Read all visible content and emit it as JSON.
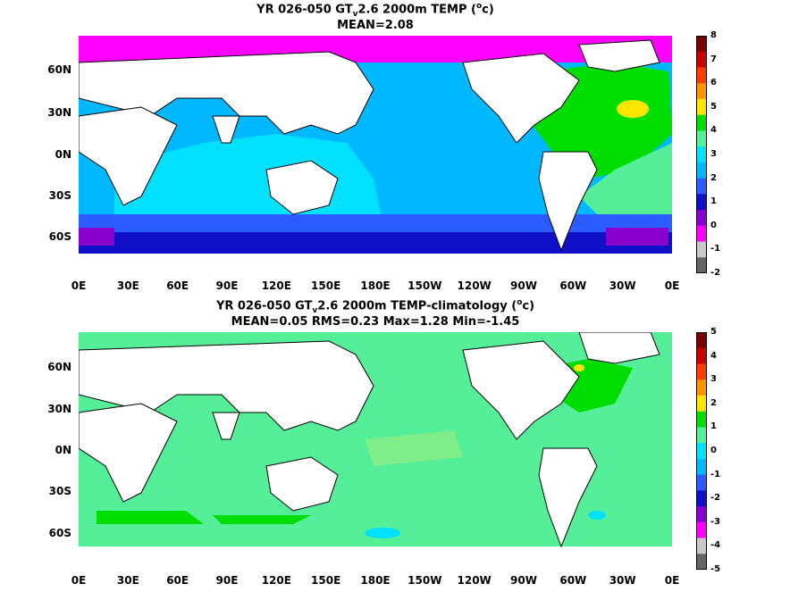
{
  "panel1": {
    "title_prefix": "YR 026-050 GT",
    "title_sub": "v",
    "title_suffix": "2.6 2000m TEMP (",
    "title_sup": "o",
    "title_end": "c)",
    "stats": "MEAN=2.08",
    "colorbar_labels": [
      "8",
      "7",
      "6",
      "5",
      "4",
      "3",
      "2",
      "1",
      "0",
      "-1",
      "-2"
    ]
  },
  "panel2": {
    "title_prefix": "YR 026-050 GT",
    "title_sub": "v",
    "title_suffix": "2.6 2000m TEMP-climatology (",
    "title_sup": "o",
    "title_end": "c)",
    "stats": "MEAN=0.05   RMS=0.23   Max=1.28   Min=-1.45",
    "colorbar_labels": [
      "5",
      "4",
      "3",
      "2",
      "1",
      "0",
      "-1",
      "-2",
      "-3",
      "-4",
      "-5"
    ]
  },
  "lat_labels": [
    "60N",
    "30N",
    "0N",
    "30S",
    "60S"
  ],
  "lon_labels": [
    "0E",
    "30E",
    "60E",
    "90E",
    "120E",
    "150E",
    "180E",
    "150W",
    "120W",
    "90W",
    "60W",
    "30W",
    "0E"
  ],
  "colorbar_colors": [
    "#7a0000",
    "#c80000",
    "#ff3c00",
    "#ff9600",
    "#ffe600",
    "#00dd00",
    "#55ee99",
    "#00e0ff",
    "#00b8ff",
    "#2a5cff",
    "#1010c8",
    "#8800cc",
    "#ff00ff",
    "#c8c8c8",
    "#646464"
  ],
  "colors": {
    "land": "#ffffff",
    "coast": "#000000",
    "polar_p1": "#ff00ff",
    "deep_ocean_p1": "#00b8ff",
    "indian_p1": "#00e0ff",
    "atlantic_p1": "#00dd00",
    "south_atl_p1": "#55ee99",
    "southern_p1": "#2a5cff",
    "antarctic_p1": "#1010c8",
    "anomaly_bg_p2": "#55ee99",
    "anomaly_pos_p2": "#00dd00"
  }
}
